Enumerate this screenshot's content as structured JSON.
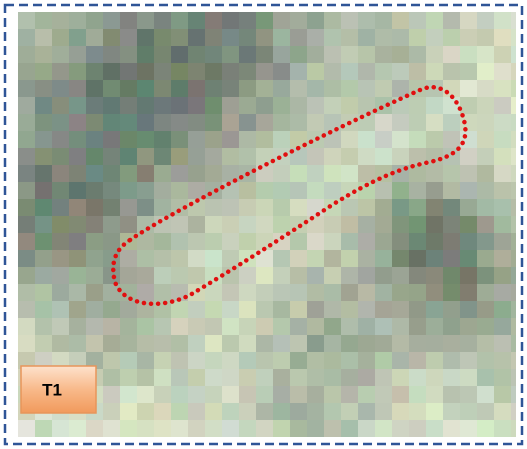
{
  "label": "T1"
}
